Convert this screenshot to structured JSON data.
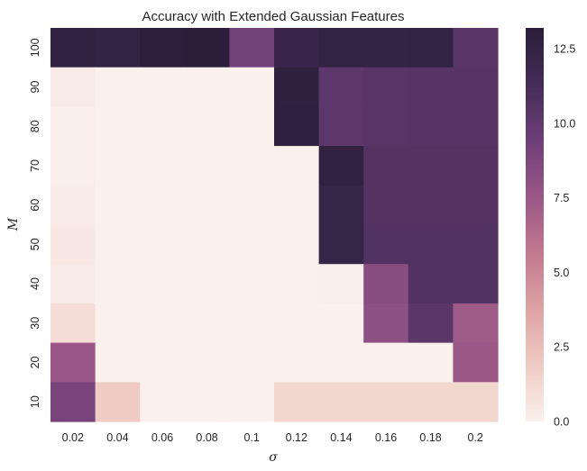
{
  "chart_data": {
    "type": "heatmap",
    "title": "Accuracy with Extended Gaussian Features",
    "xlabel": "σ",
    "ylabel": "M",
    "x_categories": [
      "0.02",
      "0.04",
      "0.06",
      "0.08",
      "0.1",
      "0.12",
      "0.14",
      "0.16",
      "0.18",
      "0.2"
    ],
    "y_categories": [
      "100",
      "90",
      "80",
      "70",
      "60",
      "50",
      "40",
      "30",
      "20",
      "10"
    ],
    "values": [
      [
        12.7,
        12.6,
        13.1,
        13.2,
        9.2,
        12.2,
        12.5,
        12.5,
        12.6,
        10.4
      ],
      [
        0.3,
        0.0,
        0.0,
        0.0,
        0.0,
        12.8,
        10.2,
        10.4,
        10.5,
        10.5
      ],
      [
        0.1,
        0.0,
        0.0,
        0.0,
        0.0,
        12.9,
        10.2,
        10.4,
        10.5,
        10.5
      ],
      [
        0.1,
        0.0,
        0.0,
        0.0,
        0.0,
        0.0,
        12.7,
        10.6,
        10.6,
        10.6
      ],
      [
        0.2,
        0.0,
        0.0,
        0.0,
        0.0,
        0.0,
        12.3,
        10.6,
        10.6,
        10.6
      ],
      [
        0.4,
        0.0,
        0.0,
        0.0,
        0.0,
        0.0,
        12.3,
        10.7,
        10.7,
        10.7
      ],
      [
        0.3,
        0.0,
        0.0,
        0.0,
        0.0,
        0.0,
        0.1,
        8.3,
        10.7,
        10.7
      ],
      [
        1.0,
        0.0,
        0.0,
        0.0,
        0.0,
        0.0,
        0.0,
        8.1,
        10.3,
        7.3
      ],
      [
        7.6,
        0.0,
        0.0,
        0.0,
        0.0,
        0.0,
        0.0,
        0.0,
        0.0,
        7.5
      ],
      [
        9.0,
        1.9,
        0.0,
        0.0,
        0.0,
        1.3,
        1.3,
        1.3,
        1.3,
        1.3
      ]
    ],
    "vmin": 0,
    "vmax": 13.2,
    "colorbar_ticks": [
      "0.0",
      "2.5",
      "5.0",
      "7.5",
      "10.0",
      "12.5"
    ],
    "colormap": [
      "#faf0ec",
      "#efcbc4",
      "#dea3a4",
      "#c2788f",
      "#9a5787",
      "#6e3f78",
      "#442c57",
      "#2a1e39"
    ]
  }
}
